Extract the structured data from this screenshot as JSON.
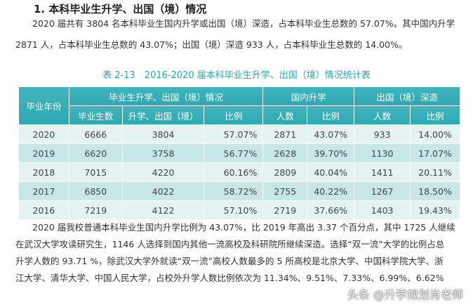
{
  "heading": "1. 本科毕业生升学、出国（境）情况",
  "para1": [
    "2020 届共有 3804 名本科毕业生国内升学或出国（境）深造，占本科毕业生总数的 57.07%。其中国内升学",
    "2871 人，占本科毕业生总数的 43.07%；出国（境）深造 933 人，占本科毕业生总数的 14.00%。"
  ],
  "caption": "表 2-13　2016-2020 届本科毕业生升学、出国（境）情况统计表",
  "table": {
    "header_top": [
      "毕业年份",
      "毕业生升学、出国（境）情况",
      "国内升学",
      "出国（境）深造"
    ],
    "header_sub": [
      "毕业生数",
      "升学、出国（境）",
      "比例",
      "人数",
      "比例",
      "人数",
      "比例"
    ],
    "rows": [
      [
        "2020",
        "6666",
        "3804",
        "57.07%",
        "2871",
        "43.07%",
        "933",
        "14.00%"
      ],
      [
        "2019",
        "6620",
        "3758",
        "56.77%",
        "2628",
        "39.70%",
        "1130",
        "17.07%"
      ],
      [
        "2018",
        "7015",
        "4220",
        "60.16%",
        "2809",
        "40.04%",
        "1411",
        "20.11%"
      ],
      [
        "2017",
        "6850",
        "4022",
        "58.72%",
        "2755",
        "40.22%",
        "1267",
        "18.50%"
      ],
      [
        "2016",
        "7219",
        "4122",
        "57.10%",
        "2719",
        "37.66%",
        "1403",
        "19.43%"
      ]
    ]
  },
  "para2": [
    "2020 届我校普通本科毕业生国内升学比例为 43.07%，比 2019 年高出 3.37 个百分点，其中 1725 人继续",
    "在武汉大学攻读研究生，1146 人选择到国内其他一流高校及科研院所继续深造。选择“双一流”大学的比例占总",
    "升学人数的 93.71 %，除武汉大学外就读“双一流”高校人数最多的 5 所高校是北京大学、中国科学院大学、浙",
    "江大学、清华大学、中国人民大学，占校外升学人数比例依次为 11.34%、9.51%、7.33%、6.99%、6.62%"
  ],
  "watermark": "头条 @升学规划肖老师"
}
